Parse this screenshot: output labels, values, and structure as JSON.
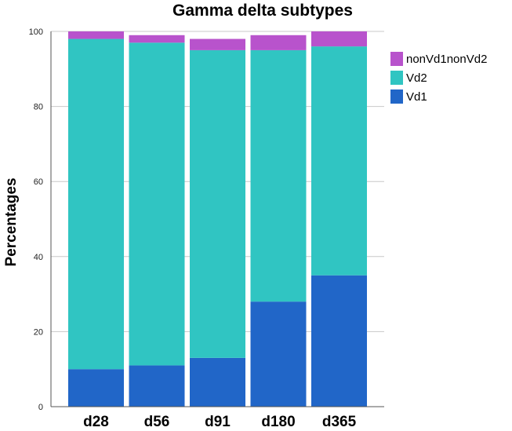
{
  "chart_data": {
    "type": "bar",
    "stacked": true,
    "title": "Gamma delta subtypes",
    "xlabel": "",
    "ylabel": "Percentages",
    "ylim": [
      0,
      100
    ],
    "yticks": [
      0,
      20,
      40,
      60,
      80,
      100
    ],
    "grid": true,
    "legend_position": "right",
    "categories": [
      "d28",
      "d56",
      "d91",
      "d180",
      "d365"
    ],
    "series": [
      {
        "name": "Vd1",
        "color": "#2166c8",
        "values": [
          10,
          11,
          13,
          28,
          35
        ]
      },
      {
        "name": "Vd2",
        "color": "#30c5c2",
        "values": [
          88,
          86,
          82,
          67,
          61
        ]
      },
      {
        "name": "nonVd1nonVd2",
        "color": "#b853cc",
        "values": [
          2,
          2,
          3,
          4,
          4
        ]
      }
    ],
    "legend_order": [
      "nonVd1nonVd2",
      "Vd2",
      "Vd1"
    ]
  }
}
